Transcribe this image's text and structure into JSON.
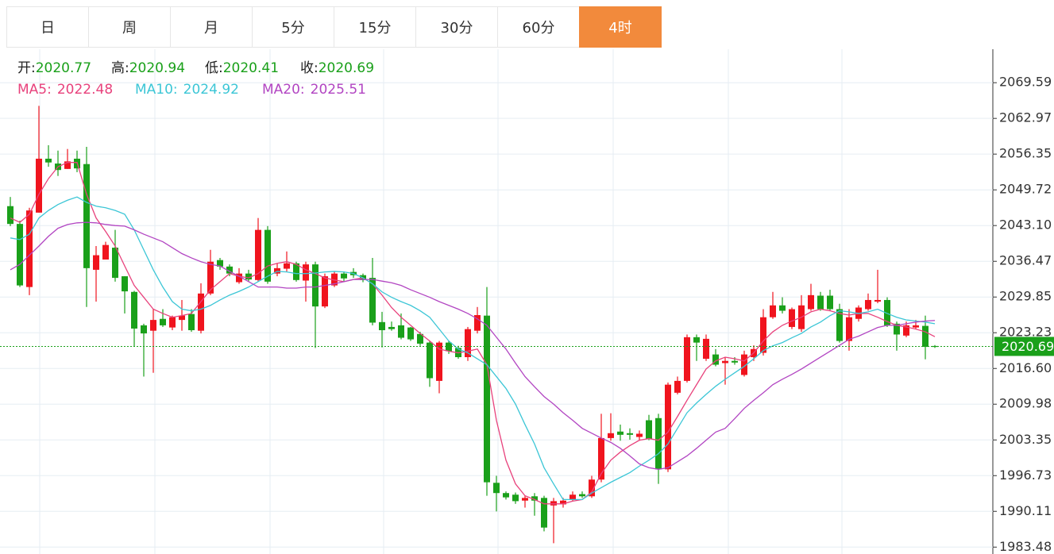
{
  "tabs": [
    {
      "label": "日",
      "active": false
    },
    {
      "label": "周",
      "active": false
    },
    {
      "label": "月",
      "active": false
    },
    {
      "label": "5分",
      "active": false
    },
    {
      "label": "15分",
      "active": false
    },
    {
      "label": "30分",
      "active": false
    },
    {
      "label": "60分",
      "active": false
    },
    {
      "label": "4时",
      "active": true
    }
  ],
  "chart_data": {
    "type": "candlestick",
    "info": [
      {
        "label": "开:",
        "value": 2020.77
      },
      {
        "label": "高:",
        "value": 2020.94
      },
      {
        "label": "低:",
        "value": 2020.41
      },
      {
        "label": "收:",
        "value": 2020.69
      }
    ],
    "value_color": "#1aa01a",
    "up_color": "#f0141e",
    "down_color": "#1aa01a",
    "open": [
      2046.7,
      2043.4,
      2031.7,
      2045.5,
      2055.5,
      2054.6,
      2053.6,
      2055.5,
      2054.5,
      2034.9,
      2036.8,
      2039.0,
      2033.7,
      2030.8,
      2024.6,
      2023.6,
      2025.8,
      2024.2,
      2025.6,
      2026.7,
      2023.6,
      2030.5,
      2036.7,
      2035.5,
      2032.6,
      2034.2,
      2033.0,
      2042.3,
      2034.2,
      2035.1,
      2036.1,
      2032.9,
      2035.9,
      2028.1,
      2032.0,
      2034.2,
      2034.5,
      2033.9,
      2033.4,
      2025.2,
      2024.3,
      2024.6,
      2024.2,
      2023.0,
      2021.4,
      2014.3,
      2021.4,
      2020.4,
      2018.7,
      2023.6,
      2026.4,
      1995.4,
      1993.5,
      1993.2,
      1992.1,
      1992.9,
      1992.6,
      1991.2,
      1991.4,
      1992.3,
      1993.3,
      1992.9,
      1996.0,
      2003.7,
      2004.9,
      2004.6,
      2003.9,
      2007.0,
      2007.4,
      1997.9,
      2012.1,
      2014.3,
      2022.4,
      2018.4,
      2019.2,
      2017.6,
      2018.0,
      2015.4,
      2018.7,
      2019.5,
      2026.1,
      2028.3,
      2024.3,
      2023.9,
      2027.6,
      2030.1,
      2030.1,
      2027.6,
      2021.7,
      2025.8,
      2027.6,
      2029.0,
      2029.3,
      2024.9,
      2022.7,
      2024.2,
      2024.5,
      2020.77
    ],
    "high": [
      2048.4,
      2044.0,
      2046.4,
      2065.3,
      2058.0,
      2057.0,
      2057.3,
      2057.0,
      2057.7,
      2039.3,
      2040.1,
      2042.3,
      2033.7,
      2031.0,
      2024.9,
      2027.6,
      2027.6,
      2026.4,
      2029.3,
      2027.6,
      2032.4,
      2038.6,
      2037.1,
      2035.9,
      2035.2,
      2034.9,
      2044.5,
      2043.0,
      2036.1,
      2038.3,
      2036.4,
      2036.4,
      2036.4,
      2034.2,
      2034.6,
      2034.6,
      2035.2,
      2034.2,
      2037.1,
      2027.1,
      2025.3,
      2026.8,
      2024.3,
      2023.4,
      2021.7,
      2021.7,
      2021.7,
      2020.8,
      2024.3,
      2028.0,
      2031.7,
      1996.7,
      1993.8,
      1993.6,
      1993.0,
      1993.5,
      1993.0,
      1992.6,
      1992.6,
      1993.8,
      1993.8,
      1996.7,
      2008.2,
      2008.3,
      2006.2,
      2005.5,
      2005.1,
      2008.0,
      2008.2,
      2014.0,
      2015.1,
      2022.9,
      2022.9,
      2022.9,
      2020.2,
      2018.7,
      2018.7,
      2019.9,
      2020.9,
      2027.6,
      2030.8,
      2029.8,
      2027.9,
      2030.2,
      2032.3,
      2030.8,
      2031.2,
      2028.6,
      2027.6,
      2028.3,
      2030.5,
      2034.9,
      2029.8,
      2025.3,
      2025.3,
      2025.6,
      2026.4,
      2020.94
    ],
    "low": [
      2043.0,
      2031.7,
      2030.2,
      2045.5,
      2054.0,
      2052.3,
      2053.6,
      2053.0,
      2028.0,
      2029.0,
      2036.8,
      2032.7,
      2026.8,
      2020.6,
      2015.1,
      2015.8,
      2024.3,
      2023.7,
      2023.6,
      2023.4,
      2023.1,
      2030.2,
      2034.9,
      2033.7,
      2032.3,
      2032.7,
      2032.7,
      2032.3,
      2033.7,
      2034.6,
      2032.7,
      2029.0,
      2020.4,
      2027.8,
      2031.7,
      2032.7,
      2033.4,
      2032.6,
      2024.6,
      2020.5,
      2023.6,
      2022.0,
      2021.7,
      2020.8,
      2013.2,
      2012.0,
      2019.3,
      2018.4,
      2018.0,
      2023.1,
      1993.0,
      1990.1,
      1992.3,
      1991.5,
      1990.8,
      1989.3,
      1986.4,
      1984.2,
      1990.8,
      1992.0,
      1992.6,
      1992.6,
      1995.5,
      2003.2,
      2003.2,
      2003.4,
      2003.2,
      2003.3,
      1995.2,
      1997.4,
      2011.8,
      2014.0,
      2018.0,
      2018.0,
      2017.0,
      2013.6,
      2017.3,
      2015.1,
      2018.0,
      2019.0,
      2025.8,
      2026.8,
      2023.9,
      2023.4,
      2027.3,
      2027.3,
      2027.3,
      2021.4,
      2019.9,
      2025.3,
      2027.3,
      2028.7,
      2024.3,
      2019.9,
      2022.4,
      2023.9,
      2018.3,
      2020.41
    ],
    "close": [
      2043.4,
      2032.0,
      2045.9,
      2055.5,
      2054.8,
      2053.4,
      2055.0,
      2053.7,
      2035.2,
      2037.6,
      2039.5,
      2033.4,
      2030.9,
      2024.0,
      2023.1,
      2025.6,
      2024.6,
      2026.1,
      2026.4,
      2023.7,
      2030.5,
      2036.4,
      2035.5,
      2034.2,
      2034.2,
      2033.1,
      2042.3,
      2032.7,
      2035.2,
      2036.1,
      2033.0,
      2035.9,
      2028.1,
      2033.7,
      2034.2,
      2033.3,
      2033.9,
      2033.0,
      2025.1,
      2023.7,
      2023.9,
      2022.3,
      2022.0,
      2021.2,
      2014.8,
      2021.4,
      2019.8,
      2018.7,
      2023.9,
      2026.5,
      1995.5,
      1993.5,
      1992.7,
      1992.0,
      1992.6,
      1992.1,
      1987.1,
      1992.0,
      1992.1,
      1993.2,
      1992.9,
      1996.0,
      2003.7,
      2004.6,
      2004.3,
      2004.3,
      2004.5,
      2003.6,
      1997.9,
      2013.6,
      2014.3,
      2022.4,
      2021.4,
      2022.1,
      2017.3,
      2018.0,
      2017.7,
      2019.2,
      2020.2,
      2026.1,
      2028.3,
      2027.3,
      2027.6,
      2028.3,
      2030.2,
      2027.6,
      2027.6,
      2021.7,
      2026.1,
      2027.9,
      2029.3,
      2029.3,
      2024.6,
      2022.9,
      2024.6,
      2024.6,
      2020.6,
      2020.69
    ],
    "series": [
      {
        "name": "MA5:",
        "value": 2022.48,
        "color": "#e8427c",
        "values": [
          2044.5,
          2043.7,
          2045.2,
          2048.9,
          2051.8,
          2054.0,
          2054.8,
          2054.8,
          2048.9,
          2044.5,
          2042.0,
          2039.3,
          2035.6,
          2032.0,
          2029.8,
          2027.6,
          2026.8,
          2026.1,
          2026.4,
          2026.8,
          2029.0,
          2031.2,
          2032.7,
          2034.2,
          2033.7,
          2033.4,
          2034.2,
          2035.6,
          2036.1,
          2036.4,
          2035.9,
          2034.9,
          2034.2,
          2033.4,
          2033.0,
          2032.7,
          2033.1,
          2033.4,
          2032.3,
          2030.2,
          2027.9,
          2026.1,
          2024.6,
          2023.1,
          2021.7,
          2020.2,
          2019.8,
          2019.5,
          2019.8,
          2020.2,
          2017.3,
          2007.0,
          1999.6,
          1995.2,
          1993.0,
          1992.3,
          1991.5,
          1991.5,
          1991.5,
          1992.0,
          1992.3,
          1993.7,
          1997.1,
          1999.6,
          2001.1,
          2002.3,
          2003.3,
          2003.6,
          2003.3,
          2004.8,
          2007.7,
          2010.7,
          2013.6,
          2016.5,
          2018.0,
          2018.7,
          2018.4,
          2018.0,
          2019.5,
          2021.7,
          2023.4,
          2024.6,
          2025.4,
          2026.1,
          2027.1,
          2027.6,
          2027.3,
          2026.8,
          2026.5,
          2026.8,
          2026.8,
          2026.1,
          2025.3,
          2024.6,
          2024.3,
          2023.9,
          2023.4,
          2022.5
        ]
      },
      {
        "name": "MA10:",
        "value": 2024.92,
        "color": "#3cc6d6",
        "values": [
          2040.8,
          2040.5,
          2041.5,
          2044.5,
          2045.9,
          2047.0,
          2047.8,
          2048.4,
          2047.4,
          2046.7,
          2046.4,
          2045.9,
          2045.2,
          2042.3,
          2038.6,
          2034.9,
          2031.7,
          2029.0,
          2027.6,
          2027.3,
          2027.6,
          2028.3,
          2029.3,
          2030.2,
          2030.9,
          2031.7,
          2032.7,
          2033.7,
          2034.6,
          2034.5,
          2034.2,
          2034.2,
          2034.3,
          2034.5,
          2034.6,
          2034.5,
          2034.2,
          2033.4,
          2032.3,
          2030.8,
          2029.8,
          2029.0,
          2028.3,
          2027.3,
          2026.1,
          2023.9,
          2021.7,
          2020.2,
          2019.5,
          2018.4,
          2017.3,
          2015.1,
          2012.9,
          2010.0,
          2006.2,
          2002.6,
          1998.2,
          1995.2,
          1992.3,
          1992.3,
          1992.3,
          1993.5,
          1994.5,
          1995.5,
          1996.4,
          1997.3,
          1998.5,
          1999.6,
          2000.8,
          2002.6,
          2005.5,
          2008.4,
          2010.2,
          2011.8,
          2013.3,
          2014.6,
          2015.8,
          2017.0,
          2018.4,
          2019.9,
          2020.8,
          2021.4,
          2022.3,
          2023.1,
          2024.3,
          2025.2,
          2026.4,
          2027.3,
          2027.1,
          2026.8,
          2027.1,
          2027.6,
          2026.8,
          2026.1,
          2025.6,
          2025.4,
          2025.2,
          2024.9
        ]
      },
      {
        "name": "MA20:",
        "value": 2025.51,
        "color": "#b245c2",
        "values": [
          2034.9,
          2035.9,
          2037.6,
          2039.3,
          2041.1,
          2042.6,
          2043.3,
          2043.6,
          2043.7,
          2043.6,
          2043.3,
          2043.1,
          2043.0,
          2042.3,
          2041.5,
          2040.8,
          2040.1,
          2039.0,
          2037.9,
          2037.1,
          2036.4,
          2035.9,
          2035.6,
          2034.6,
          2033.7,
          2032.7,
          2031.7,
          2031.7,
          2031.7,
          2031.5,
          2031.5,
          2031.7,
          2031.7,
          2032.0,
          2032.3,
          2032.7,
          2033.1,
          2033.1,
          2033.1,
          2032.8,
          2032.5,
          2032.0,
          2031.2,
          2030.5,
          2029.8,
          2029.0,
          2028.3,
          2027.6,
          2026.8,
          2025.8,
          2024.6,
          2022.4,
          2020.2,
          2017.6,
          2015.1,
          2013.2,
          2011.4,
          2010.0,
          2008.4,
          2007.0,
          2005.5,
          2004.6,
          2003.7,
          2002.9,
          2001.8,
          2000.4,
          1998.9,
          1998.2,
          1997.9,
          1998.2,
          1999.3,
          2000.4,
          2001.8,
          2003.3,
          2004.8,
          2005.5,
          2007.3,
          2009.2,
          2010.7,
          2012.1,
          2013.6,
          2014.6,
          2015.5,
          2016.5,
          2017.6,
          2018.7,
          2019.8,
          2020.9,
          2022.0,
          2022.6,
          2023.4,
          2024.2,
          2024.6,
          2024.6,
          2024.9,
          2025.2,
          2025.4,
          2025.5
        ]
      }
    ],
    "ylim": [
      1982.2,
      2075.8
    ],
    "yticks": [
      2069.59,
      2062.97,
      2056.35,
      2049.72,
      {
        "value": 2043.1,
        "label": "2043.10"
      },
      2036.47,
      2029.85,
      2023.23,
      {
        "value": 2016.6,
        "label": "2016.60"
      },
      2009.98,
      2003.35,
      1996.73,
      1990.11,
      1983.48
    ],
    "grid": true
  }
}
